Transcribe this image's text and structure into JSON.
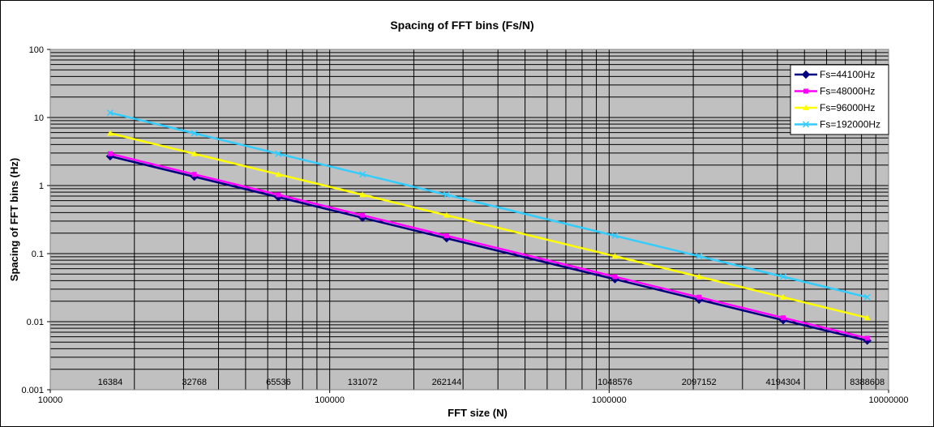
{
  "chart_data": {
    "type": "line",
    "title": "Spacing of FFT bins (Fs/N)",
    "xlabel": "FFT size (N)",
    "ylabel": "Spacing of FFT bins (Hz)",
    "x_scale": "log",
    "y_scale": "log",
    "xlim": [
      10000,
      10000000
    ],
    "ylim": [
      0.001,
      100
    ],
    "x_ticks": [
      "10000",
      "100000",
      "1000000",
      "10000000"
    ],
    "y_ticks": [
      "0.001",
      "0.01",
      "0.1",
      "1",
      "10",
      "100"
    ],
    "grid": true,
    "legend_position": "top-right",
    "x": [
      16384,
      32768,
      65536,
      131072,
      262144,
      1048576,
      2097152,
      4194304,
      8388608
    ],
    "data_labels": [
      "16384",
      "32768",
      "65536",
      "131072",
      "262144",
      "1048576",
      "2097152",
      "4194304",
      "8388608"
    ],
    "series": [
      {
        "name": "Fs=44100Hz",
        "color": "#000080",
        "marker": "diamond",
        "values": [
          2.69,
          1.35,
          0.673,
          0.336,
          0.168,
          0.0421,
          0.021,
          0.0105,
          0.00526
        ]
      },
      {
        "name": "Fs=48000Hz",
        "color": "#ff00ff",
        "marker": "square",
        "values": [
          2.93,
          1.46,
          0.732,
          0.366,
          0.183,
          0.0458,
          0.0229,
          0.0114,
          0.00572
        ]
      },
      {
        "name": "Fs=96000Hz",
        "color": "#ffff00",
        "marker": "triangle",
        "values": [
          5.86,
          2.93,
          1.46,
          0.732,
          0.366,
          0.0916,
          0.0458,
          0.0229,
          0.0114
        ]
      },
      {
        "name": "Fs=192000Hz",
        "color": "#33ccff",
        "marker": "x",
        "values": [
          11.72,
          5.86,
          2.93,
          1.46,
          0.732,
          0.183,
          0.0916,
          0.0458,
          0.0229
        ]
      }
    ]
  }
}
